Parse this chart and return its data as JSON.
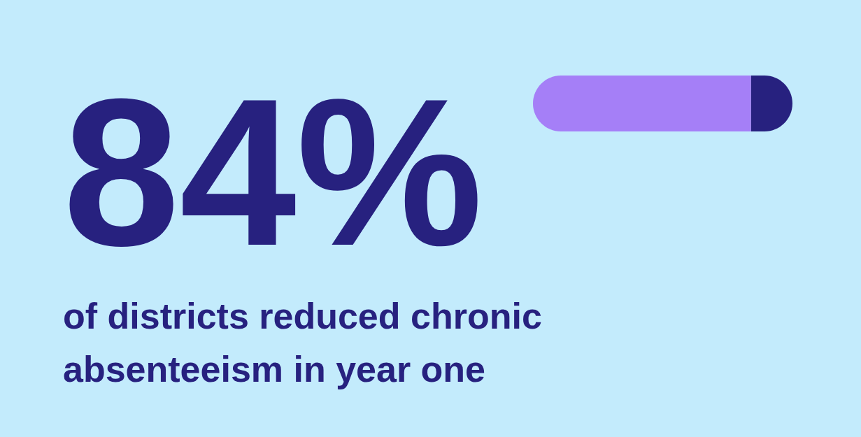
{
  "chart_data": {
    "type": "bar",
    "orientation": "horizontal",
    "stacked": true,
    "categories": [
      null
    ],
    "xlim": [
      0,
      100
    ],
    "tick_labels": false,
    "series": [
      {
        "color": "#a57ff7",
        "values": [
          84
        ],
        "value_labels": [
          "84%"
        ]
      },
      {
        "color": "#27217f",
        "values": [
          16
        ]
      }
    ],
    "annotations": [
      "of districts reduced chronic absenteeism in year one"
    ]
  }
}
